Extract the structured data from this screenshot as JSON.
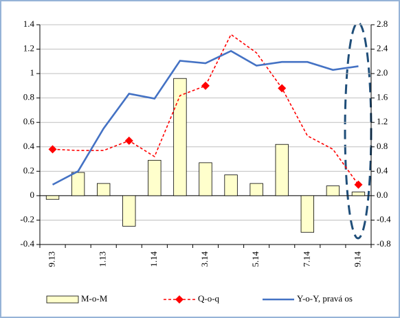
{
  "chart_data": {
    "type": "bar_line",
    "categories": [
      "9.13",
      null,
      "1.13",
      null,
      "1.14",
      null,
      "3.14",
      null,
      "5.14",
      null,
      "7.14",
      null,
      "9.14"
    ],
    "series": [
      {
        "name": "M-o-M",
        "type": "bar",
        "color": "#ffffcc",
        "values": [
          -0.03,
          0.19,
          0.1,
          -0.25,
          0.29,
          0.96,
          0.27,
          0.17,
          0.1,
          0.42,
          -0.3,
          0.08,
          0.03
        ]
      },
      {
        "name": "Q-o-q",
        "type": "line",
        "color": "#ff0000",
        "values": [
          0.38,
          0.37,
          0.37,
          0.45,
          0.32,
          0.82,
          0.9,
          1.32,
          1.17,
          0.88,
          0.49,
          0.38,
          0.09
        ]
      },
      {
        "name": "Y-o-Y, pravá os",
        "type": "line",
        "axis": "y2",
        "color": "#4472c4",
        "values": [
          0.18,
          0.4,
          1.1,
          1.67,
          1.59,
          2.21,
          2.17,
          2.37,
          2.13,
          2.19,
          2.19,
          2.06,
          2.12
        ]
      }
    ],
    "ylim": [
      -0.4,
      1.4
    ],
    "yticks": [
      -0.4,
      -0.2,
      0,
      0.2,
      0.4,
      0.6,
      0.8,
      1,
      1.2,
      1.4
    ],
    "y2lim": [
      -0.8,
      2.8
    ],
    "y2ticks": [
      -0.8,
      -0.4,
      {
        "value": 0,
        "label": "0.0"
      },
      0.4,
      0.8,
      1.2,
      1.6,
      {
        "value": 2,
        "label": "2.0"
      },
      2.4,
      2.8
    ],
    "grid": true,
    "legend": "bottom"
  }
}
